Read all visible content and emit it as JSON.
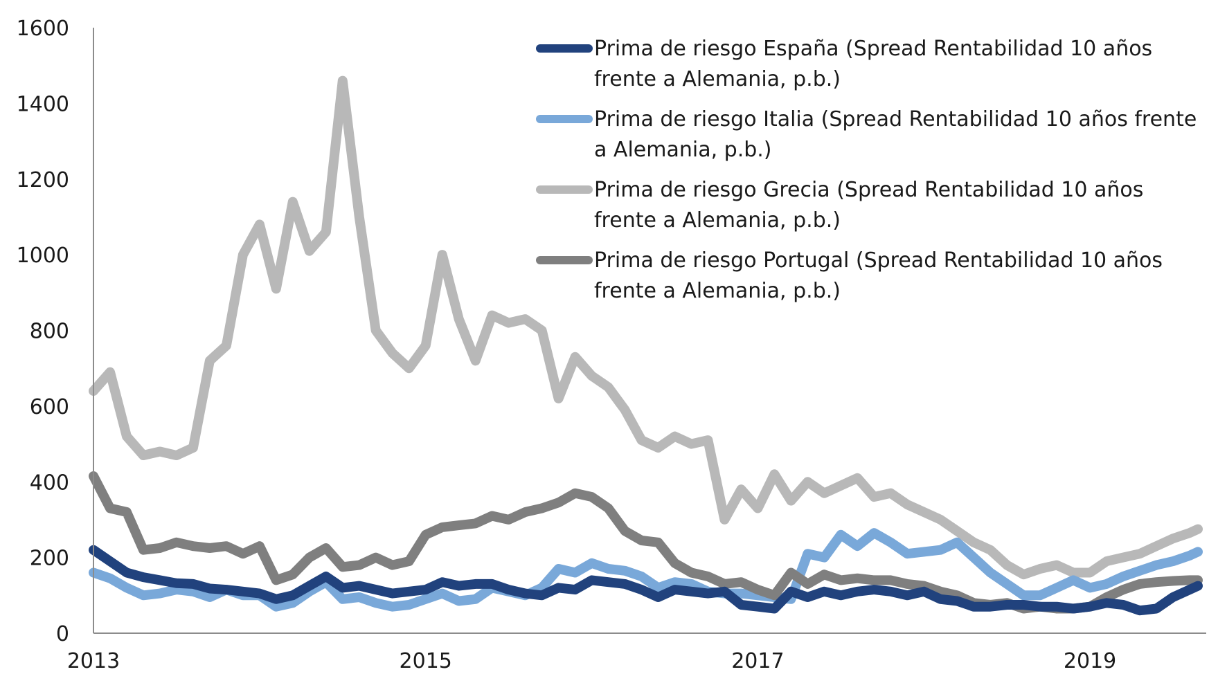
{
  "chart_data": {
    "type": "line",
    "title": "",
    "xlabel": "",
    "ylabel": "",
    "xlim": [
      2013.0,
      2019.7
    ],
    "ylim": [
      0,
      1600
    ],
    "x_ticks": [
      2013,
      2015,
      2017,
      2019
    ],
    "y_ticks": [
      0,
      200,
      400,
      600,
      800,
      1000,
      1200,
      1400,
      1600
    ],
    "grid": false,
    "legend_position": "top-right",
    "x": [
      2013.0,
      2013.1,
      2013.2,
      2013.3,
      2013.4,
      2013.5,
      2013.6,
      2013.7,
      2013.8,
      2013.9,
      2014.0,
      2014.1,
      2014.2,
      2014.3,
      2014.4,
      2014.5,
      2014.6,
      2014.7,
      2014.8,
      2014.9,
      2015.0,
      2015.1,
      2015.2,
      2015.3,
      2015.4,
      2015.5,
      2015.6,
      2015.7,
      2015.8,
      2015.9,
      2016.0,
      2016.1,
      2016.2,
      2016.3,
      2016.4,
      2016.5,
      2016.6,
      2016.7,
      2016.8,
      2016.9,
      2017.0,
      2017.1,
      2017.2,
      2017.3,
      2017.4,
      2017.5,
      2017.6,
      2017.7,
      2017.8,
      2017.9,
      2018.0,
      2018.1,
      2018.2,
      2018.3,
      2018.4,
      2018.5,
      2018.6,
      2018.7,
      2018.8,
      2018.9,
      2019.0,
      2019.1,
      2019.2,
      2019.3,
      2019.4,
      2019.5,
      2019.6,
      2019.65
    ],
    "series": [
      {
        "name": "Prima de riesgo España (Spread Rentabilidad 10 años frente a Alemania, p.b.)",
        "color": "#21427d",
        "values": [
          220,
          190,
          160,
          148,
          140,
          132,
          130,
          118,
          115,
          110,
          105,
          90,
          100,
          125,
          150,
          120,
          125,
          115,
          105,
          110,
          115,
          135,
          125,
          130,
          130,
          115,
          105,
          100,
          120,
          115,
          140,
          135,
          130,
          115,
          95,
          115,
          110,
          105,
          110,
          75,
          70,
          65,
          110,
          95,
          110,
          100,
          110,
          115,
          110,
          100,
          110,
          90,
          85,
          70,
          70,
          75,
          75,
          70,
          70,
          65,
          70,
          80,
          75,
          60,
          65,
          95,
          115,
          125
        ]
      },
      {
        "name": "Prima de riesgo Italia (Spread Rentabilidad 10 años frente a Alemania, p.b.)",
        "color": "#79a8d9",
        "values": [
          160,
          145,
          120,
          100,
          105,
          115,
          110,
          95,
          115,
          100,
          100,
          70,
          80,
          110,
          135,
          90,
          95,
          80,
          70,
          75,
          90,
          105,
          85,
          90,
          120,
          110,
          100,
          120,
          170,
          160,
          185,
          170,
          165,
          150,
          120,
          135,
          130,
          110,
          105,
          105,
          100,
          95,
          90,
          210,
          200,
          260,
          230,
          265,
          240,
          210,
          215,
          220,
          240,
          200,
          160,
          130,
          100,
          100,
          120,
          140,
          120,
          130,
          150,
          165,
          180,
          190,
          205,
          215
        ]
      },
      {
        "name": "Prima de riesgo Grecia (Spread Rentabilidad 10 años frente a Alemania, p.b.)",
        "color": "#b8b8b8",
        "values": [
          640,
          690,
          520,
          470,
          480,
          470,
          490,
          720,
          760,
          1000,
          1080,
          910,
          1140,
          1010,
          1060,
          1460,
          1100,
          800,
          740,
          700,
          760,
          1000,
          830,
          720,
          840,
          820,
          830,
          800,
          620,
          730,
          680,
          650,
          590,
          510,
          490,
          520,
          500,
          510,
          300,
          380,
          330,
          420,
          350,
          400,
          370,
          390,
          410,
          360,
          370,
          340,
          320,
          300,
          270,
          240,
          220,
          180,
          155,
          170,
          180,
          160,
          160,
          190,
          200,
          210,
          230,
          250,
          265,
          275
        ]
      },
      {
        "name": "Prima de riesgo Portugal (Spread Rentabilidad 10 años frente a Alemania, p.b.)",
        "color": "#7f7f7f",
        "values": [
          415,
          330,
          320,
          220,
          225,
          240,
          230,
          225,
          230,
          210,
          230,
          140,
          155,
          200,
          225,
          175,
          180,
          200,
          180,
          190,
          260,
          280,
          285,
          290,
          310,
          300,
          320,
          330,
          345,
          370,
          360,
          330,
          270,
          245,
          240,
          185,
          160,
          150,
          130,
          135,
          115,
          100,
          160,
          130,
          155,
          140,
          145,
          140,
          140,
          130,
          125,
          110,
          100,
          80,
          75,
          80,
          65,
          70,
          65,
          65,
          70,
          95,
          115,
          130,
          135,
          138,
          140,
          140
        ]
      }
    ]
  }
}
